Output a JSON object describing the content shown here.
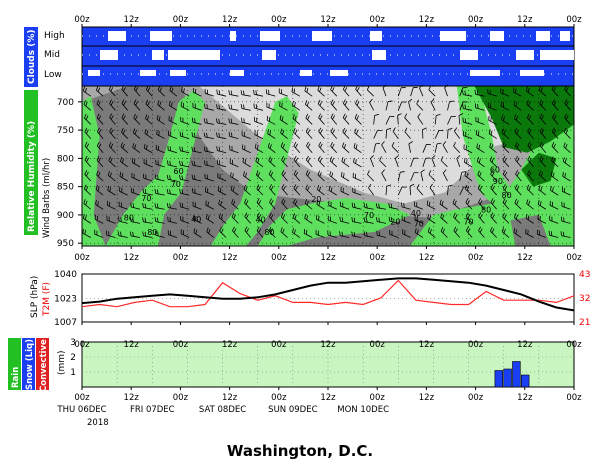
{
  "caption": "Washington, D.C.",
  "top_ticks": [
    "00z",
    "12z",
    "00z",
    "12z",
    "00z",
    "12z",
    "00z",
    "12z",
    "00z",
    "12z",
    "00z"
  ],
  "bottom_ticks": [
    "00z",
    "12z",
    "00z",
    "12z",
    "00z",
    "12z",
    "00z",
    "12z",
    "00z",
    "12z",
    "00z"
  ],
  "day_labels": [
    "THU 06DEC",
    "FRI 07DEC",
    "SAT 08DEC",
    "SUN 09DEC",
    "MON 10DEC"
  ],
  "year_label": "2018",
  "colors": {
    "clouds": "#1a3ef2",
    "rh_low": "#5ee05e",
    "rh_high": "#0a780a",
    "slp": "#000000",
    "t2m": "#ff2a2a",
    "precip_bar": "#1a3ef2",
    "precip_bg": "#c8f5c0",
    "gray_dark": "#7a7a7a",
    "gray_mid": "#a8a8a8",
    "gray_light": "#dcdcdc"
  },
  "chart_data": [
    {
      "type": "heatmap",
      "panel": "clouds",
      "ylabel": "Clouds (%)",
      "layers": [
        "High",
        "Mid",
        "Low"
      ],
      "x": [
        "00z",
        "12z",
        "00z",
        "12z",
        "00z",
        "12z",
        "00z",
        "12z",
        "00z",
        "12z",
        "00z"
      ]
    },
    {
      "type": "heatmap",
      "panel": "relative_humidity_wind",
      "ylabel_left": "Relative Humidity (%)",
      "ylabel_right": "Wind Barbs (ml/hr)",
      "yticks": [
        700,
        750,
        800,
        850,
        900,
        950
      ],
      "x": [
        "00z",
        "12z",
        "00z",
        "12z",
        "00z",
        "12z",
        "00z",
        "12z",
        "00z",
        "12z",
        "00z"
      ],
      "contour_labels": [
        {
          "value": "70",
          "hour": 22,
          "level": 870
        },
        {
          "value": "80",
          "hour": 16,
          "level": 905
        },
        {
          "value": "80",
          "hour": 24,
          "level": 930
        },
        {
          "value": "60",
          "hour": 33,
          "level": 822
        },
        {
          "value": "70",
          "hour": 32,
          "level": 845
        },
        {
          "value": "40",
          "hour": 39,
          "level": 907
        },
        {
          "value": "40",
          "hour": 61,
          "level": 908
        },
        {
          "value": "80",
          "hour": 64,
          "level": 930
        },
        {
          "value": "20",
          "hour": 80,
          "level": 872
        },
        {
          "value": "70",
          "hour": 98,
          "level": 900
        },
        {
          "value": "20",
          "hour": 107,
          "level": 912
        },
        {
          "value": "40",
          "hour": 114,
          "level": 897
        },
        {
          "value": "70",
          "hour": 115,
          "level": 915
        },
        {
          "value": "70",
          "hour": 132,
          "level": 912
        },
        {
          "value": "80",
          "hour": 138,
          "level": 890
        },
        {
          "value": "90",
          "hour": 142,
          "level": 840
        },
        {
          "value": "80",
          "hour": 145,
          "level": 865
        },
        {
          "value": "60",
          "hour": 141,
          "level": 820
        }
      ]
    },
    {
      "type": "line",
      "panel": "slp_t2m",
      "y1label": "SLP (hPa)",
      "y2label": "T2M (F)",
      "y1ticks": [
        1007,
        1023,
        1040
      ],
      "y2ticks": [
        21,
        32,
        43
      ],
      "y1lim": [
        1007,
        1040
      ],
      "y2lim": [
        21,
        43
      ],
      "x_hours": [
        0,
        6,
        12,
        18,
        24,
        30,
        36,
        42,
        48,
        54,
        60,
        66,
        72,
        78,
        84,
        90,
        96,
        102,
        108,
        114,
        120,
        126,
        132,
        138,
        144,
        150,
        156,
        162,
        168
      ],
      "series": [
        {
          "name": "SLP",
          "axis": "left",
          "values": [
            1020,
            1021,
            1023,
            1024,
            1025,
            1026,
            1025,
            1024,
            1023,
            1023,
            1024,
            1026,
            1029,
            1032,
            1034,
            1034,
            1035,
            1036,
            1037,
            1037,
            1036,
            1035,
            1034,
            1032,
            1029,
            1026,
            1021,
            1017,
            1015
          ]
        },
        {
          "name": "T2M",
          "axis": "right",
          "values": [
            28,
            29,
            28,
            30,
            31,
            28,
            28,
            29,
            39,
            34,
            31,
            33,
            30,
            30,
            29,
            30,
            29,
            32,
            40,
            31,
            30,
            29,
            29,
            35,
            31,
            31,
            31,
            30,
            33
          ]
        }
      ]
    },
    {
      "type": "bar",
      "panel": "precipitation",
      "ylabel": "(mm)",
      "legend": [
        "Rain",
        "Snow (Liq)",
        "Convective"
      ],
      "yticks": [
        1,
        2,
        3
      ],
      "ylim": [
        0,
        3
      ],
      "bars": [
        {
          "hour": 141,
          "value": 1.1,
          "series": "Snow (Liq)"
        },
        {
          "hour": 144,
          "value": 1.2,
          "series": "Snow (Liq)"
        },
        {
          "hour": 147,
          "value": 1.7,
          "series": "Snow (Liq)"
        },
        {
          "hour": 150,
          "value": 0.8,
          "series": "Snow (Liq)"
        }
      ]
    }
  ]
}
